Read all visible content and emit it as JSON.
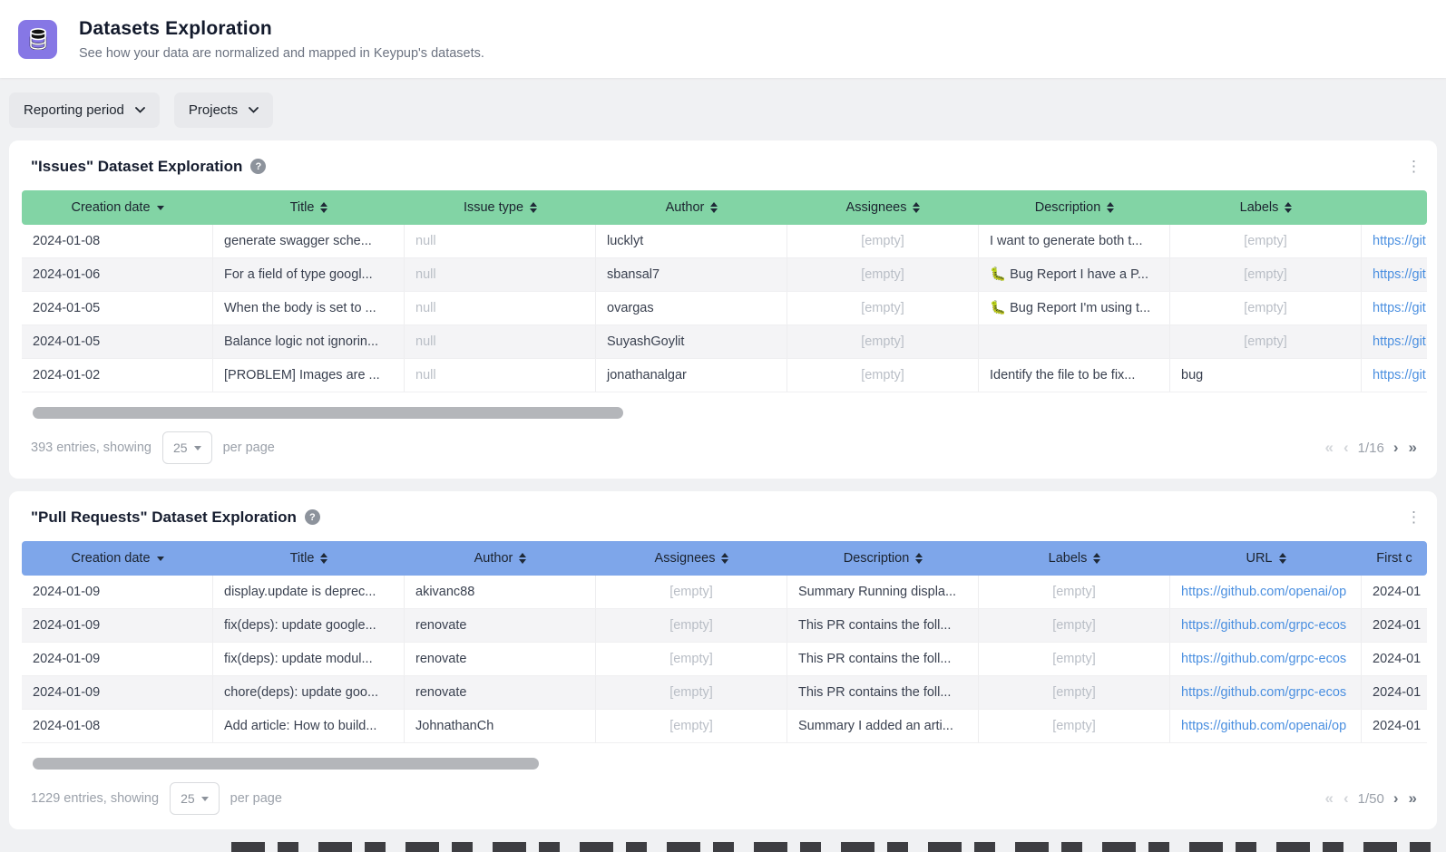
{
  "page": {
    "title": "Datasets Exploration",
    "subtitle": "See how your data are normalized and mapped in Keypup's datasets."
  },
  "filters": [
    {
      "label": "Reporting period"
    },
    {
      "label": "Projects"
    }
  ],
  "colors": {
    "issues_header": "#82d4a5",
    "pull_requests_header": "#7ea6ea",
    "app_badge": "#8677e5",
    "link": "#4a8fe0"
  },
  "icons": {
    "app_badge": "database-icon",
    "help": "question-mark-icon",
    "menu": "kebab-menu-icon",
    "sort": "sort-arrows-icon"
  },
  "tables": [
    {
      "title": "\"Issues\" Dataset Exploration",
      "columns": [
        {
          "label": "Creation date",
          "sort": "desc"
        },
        {
          "label": "Title",
          "sort": "both"
        },
        {
          "label": "Issue type",
          "sort": "both"
        },
        {
          "label": "Author",
          "sort": "both"
        },
        {
          "label": "Assignees",
          "sort": "both"
        },
        {
          "label": "Description",
          "sort": "both"
        },
        {
          "label": "Labels",
          "sort": "both"
        },
        {
          "label": "",
          "sort": "none"
        }
      ],
      "rows": [
        [
          {
            "text": "2024-01-08",
            "style": "normal"
          },
          {
            "text": "generate swagger sche...",
            "style": "normal"
          },
          {
            "text": "null",
            "style": "muted"
          },
          {
            "text": "lucklyt",
            "style": "normal"
          },
          {
            "text": "[empty]",
            "style": "empty"
          },
          {
            "text": "I want to generate both t...",
            "style": "normal"
          },
          {
            "text": "[empty]",
            "style": "empty"
          },
          {
            "text": "https://git",
            "style": "link"
          }
        ],
        [
          {
            "text": "2024-01-06",
            "style": "normal"
          },
          {
            "text": "For a field of type googl...",
            "style": "normal"
          },
          {
            "text": "null",
            "style": "muted"
          },
          {
            "text": "sbansal7",
            "style": "normal"
          },
          {
            "text": "[empty]",
            "style": "empty"
          },
          {
            "text": "🐛 Bug Report I have a P...",
            "style": "normal"
          },
          {
            "text": "[empty]",
            "style": "empty"
          },
          {
            "text": "https://git",
            "style": "link"
          }
        ],
        [
          {
            "text": "2024-01-05",
            "style": "normal"
          },
          {
            "text": "When the body is set to ...",
            "style": "normal"
          },
          {
            "text": "null",
            "style": "muted"
          },
          {
            "text": "ovargas",
            "style": "normal"
          },
          {
            "text": "[empty]",
            "style": "empty"
          },
          {
            "text": "🐛 Bug Report I'm using t...",
            "style": "normal"
          },
          {
            "text": "[empty]",
            "style": "empty"
          },
          {
            "text": "https://git",
            "style": "link"
          }
        ],
        [
          {
            "text": "2024-01-05",
            "style": "normal"
          },
          {
            "text": "Balance logic not ignorin...",
            "style": "normal"
          },
          {
            "text": "null",
            "style": "muted"
          },
          {
            "text": "SuyashGoylit",
            "style": "normal"
          },
          {
            "text": "[empty]",
            "style": "empty"
          },
          {
            "text": "",
            "style": "normal"
          },
          {
            "text": "[empty]",
            "style": "empty"
          },
          {
            "text": "https://git",
            "style": "link"
          }
        ],
        [
          {
            "text": "2024-01-02",
            "style": "normal"
          },
          {
            "text": "[PROBLEM] Images are ...",
            "style": "normal"
          },
          {
            "text": "null",
            "style": "muted"
          },
          {
            "text": "jonathanalgar",
            "style": "normal"
          },
          {
            "text": "[empty]",
            "style": "empty"
          },
          {
            "text": "Identify the file to be fix...",
            "style": "normal"
          },
          {
            "text": "bug",
            "style": "normal"
          },
          {
            "text": "https://git",
            "style": "link"
          }
        ]
      ],
      "scrollbar_width_pct": 42,
      "footer": {
        "entries_text": "393 entries, showing",
        "page_size": "25",
        "per_page_text": "per page",
        "page_indicator": "1/16"
      }
    },
    {
      "title": "\"Pull Requests\" Dataset Exploration",
      "columns": [
        {
          "label": "Creation date",
          "sort": "desc"
        },
        {
          "label": "Title",
          "sort": "both"
        },
        {
          "label": "Author",
          "sort": "both"
        },
        {
          "label": "Assignees",
          "sort": "both"
        },
        {
          "label": "Description",
          "sort": "both"
        },
        {
          "label": "Labels",
          "sort": "both"
        },
        {
          "label": "URL",
          "sort": "both"
        },
        {
          "label": "First c",
          "sort": "none"
        }
      ],
      "rows": [
        [
          {
            "text": "2024-01-09",
            "style": "normal"
          },
          {
            "text": "display.update is deprec...",
            "style": "normal"
          },
          {
            "text": "akivanc88",
            "style": "normal"
          },
          {
            "text": "[empty]",
            "style": "empty"
          },
          {
            "text": "Summary Running displa...",
            "style": "normal"
          },
          {
            "text": "[empty]",
            "style": "empty"
          },
          {
            "text": "https://github.com/openai/op",
            "style": "link"
          },
          {
            "text": "2024-01",
            "style": "normal"
          }
        ],
        [
          {
            "text": "2024-01-09",
            "style": "normal"
          },
          {
            "text": "fix(deps): update google...",
            "style": "normal"
          },
          {
            "text": "renovate",
            "style": "normal"
          },
          {
            "text": "[empty]",
            "style": "empty"
          },
          {
            "text": "This PR contains the foll...",
            "style": "normal"
          },
          {
            "text": "[empty]",
            "style": "empty"
          },
          {
            "text": "https://github.com/grpc-ecos",
            "style": "link"
          },
          {
            "text": "2024-01",
            "style": "normal"
          }
        ],
        [
          {
            "text": "2024-01-09",
            "style": "normal"
          },
          {
            "text": "fix(deps): update modul...",
            "style": "normal"
          },
          {
            "text": "renovate",
            "style": "normal"
          },
          {
            "text": "[empty]",
            "style": "empty"
          },
          {
            "text": "This PR contains the foll...",
            "style": "normal"
          },
          {
            "text": "[empty]",
            "style": "empty"
          },
          {
            "text": "https://github.com/grpc-ecos",
            "style": "link"
          },
          {
            "text": "2024-01",
            "style": "normal"
          }
        ],
        [
          {
            "text": "2024-01-09",
            "style": "normal"
          },
          {
            "text": "chore(deps): update goo...",
            "style": "normal"
          },
          {
            "text": "renovate",
            "style": "normal"
          },
          {
            "text": "[empty]",
            "style": "empty"
          },
          {
            "text": "This PR contains the foll...",
            "style": "normal"
          },
          {
            "text": "[empty]",
            "style": "empty"
          },
          {
            "text": "https://github.com/grpc-ecos",
            "style": "link"
          },
          {
            "text": "2024-01",
            "style": "normal"
          }
        ],
        [
          {
            "text": "2024-01-08",
            "style": "normal"
          },
          {
            "text": "Add article: How to build...",
            "style": "normal"
          },
          {
            "text": "JohnathanCh",
            "style": "normal"
          },
          {
            "text": "[empty]",
            "style": "empty"
          },
          {
            "text": "Summary I added an arti...",
            "style": "normal"
          },
          {
            "text": "[empty]",
            "style": "empty"
          },
          {
            "text": "https://github.com/openai/op",
            "style": "link"
          },
          {
            "text": "2024-01",
            "style": "normal"
          }
        ]
      ],
      "scrollbar_width_pct": 36,
      "footer": {
        "entries_text": "1229 entries, showing",
        "page_size": "25",
        "per_page_text": "per page",
        "page_indicator": "1/50"
      }
    }
  ],
  "pagination_icons": {
    "first": "«",
    "prev": "‹",
    "next": "›",
    "last": "»"
  }
}
